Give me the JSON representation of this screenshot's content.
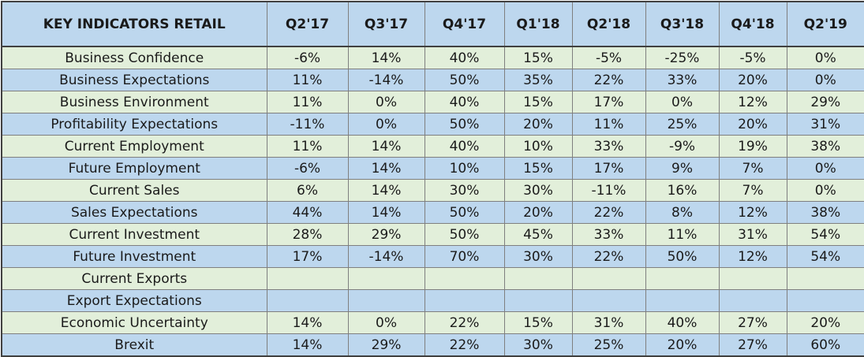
{
  "table": {
    "headers": [
      "KEY INDICATORS RETAIL",
      "Q2'17",
      "Q3'17",
      "Q4'17",
      "Q1'18",
      "Q2'18",
      "Q3'18",
      "Q4'18",
      "Q2'19"
    ],
    "rows": [
      {
        "label": "Business Confidence",
        "values": [
          "-6%",
          "14%",
          "40%",
          "15%",
          "-5%",
          "-25%",
          "-5%",
          "0%"
        ]
      },
      {
        "label": "Business Expectations",
        "values": [
          "11%",
          "-14%",
          "50%",
          "35%",
          "22%",
          "33%",
          "20%",
          "0%"
        ]
      },
      {
        "label": "Business Environment",
        "values": [
          "11%",
          "0%",
          "40%",
          "15%",
          "17%",
          "0%",
          "12%",
          "29%"
        ]
      },
      {
        "label": "Profitability Expectations",
        "values": [
          "-11%",
          "0%",
          "50%",
          "20%",
          "11%",
          "25%",
          "20%",
          "31%"
        ]
      },
      {
        "label": "Current Employment",
        "values": [
          "11%",
          "14%",
          "40%",
          "10%",
          "33%",
          "-9%",
          "19%",
          "38%"
        ]
      },
      {
        "label": "Future Employment",
        "values": [
          "-6%",
          "14%",
          "10%",
          "15%",
          "17%",
          "9%",
          "7%",
          "0%"
        ]
      },
      {
        "label": "Current Sales",
        "values": [
          "6%",
          "14%",
          "30%",
          "30%",
          "-11%",
          "16%",
          "7%",
          "0%"
        ]
      },
      {
        "label": "Sales Expectations",
        "values": [
          "44%",
          "14%",
          "50%",
          "20%",
          "22%",
          "8%",
          "12%",
          "38%"
        ]
      },
      {
        "label": "Current Investment",
        "values": [
          "28%",
          "29%",
          "50%",
          "45%",
          "33%",
          "11%",
          "31%",
          "54%"
        ]
      },
      {
        "label": "Future Investment",
        "values": [
          "17%",
          "-14%",
          "70%",
          "30%",
          "22%",
          "50%",
          "12%",
          "54%"
        ]
      },
      {
        "label": "Current Exports",
        "values": [
          "",
          "",
          "",
          "",
          "",
          "",
          "",
          ""
        ]
      },
      {
        "label": "Export Expectations",
        "values": [
          "",
          "",
          "",
          "",
          "",
          "",
          "",
          ""
        ]
      },
      {
        "label": "Economic Uncertainty",
        "values": [
          "14%",
          "0%",
          "22%",
          "15%",
          "31%",
          "40%",
          "27%",
          "20%"
        ]
      },
      {
        "label": "Brexit",
        "values": [
          "14%",
          "29%",
          "22%",
          "30%",
          "25%",
          "20%",
          "27%",
          "60%"
        ]
      }
    ]
  },
  "colors": {
    "header_fill": "#bdd7ee",
    "row_green": "#e2efda",
    "row_blue": "#bdd7ee",
    "grid_line": "#7f7f7f"
  }
}
